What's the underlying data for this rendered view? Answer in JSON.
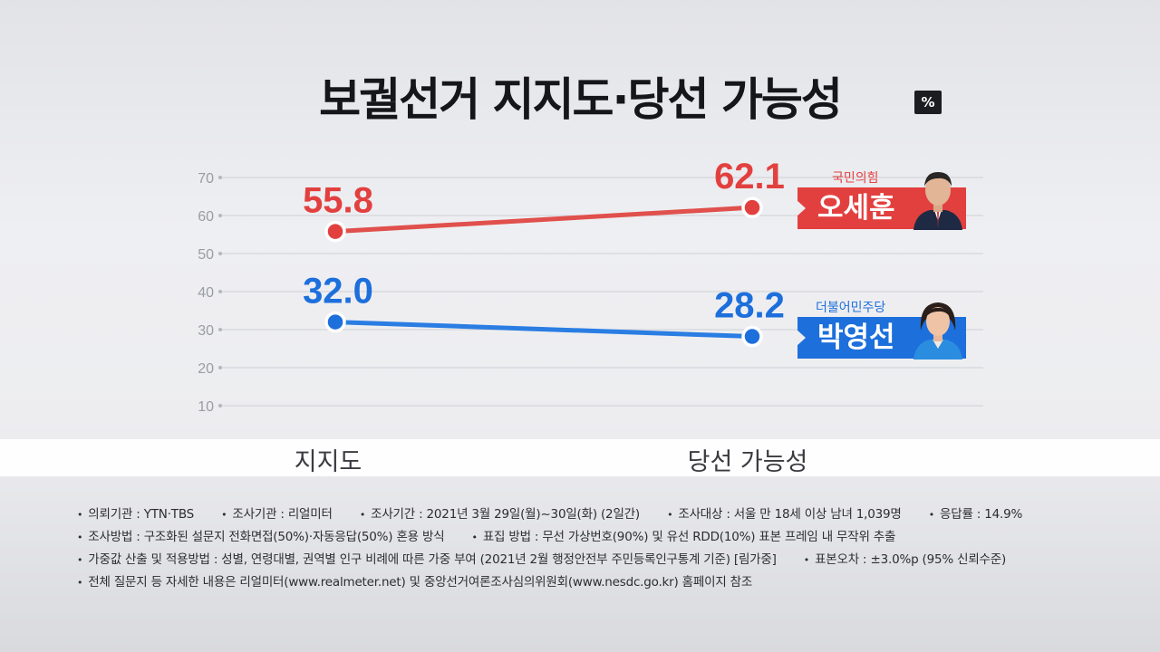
{
  "title": "보궐선거 지지도·당선 가능성",
  "unit_badge": "%",
  "colors": {
    "red": "#e2403f",
    "blue": "#1d6fdc",
    "red_line": "#e0504c",
    "blue_line": "#2a7de2"
  },
  "chart_data": {
    "type": "line",
    "title": "보궐선거 지지도·당선 가능성",
    "unit": "%",
    "categories": [
      "지지도",
      "당선 가능성"
    ],
    "y_ticks": [
      70,
      60,
      50,
      40,
      30,
      20,
      10
    ],
    "ylim": [
      10,
      70
    ],
    "grid": true,
    "series": [
      {
        "name": "오세훈",
        "party": "국민의힘",
        "color": "#e2403f",
        "values": [
          55.8,
          62.1
        ],
        "labels": [
          "55.8",
          "62.1"
        ]
      },
      {
        "name": "박영선",
        "party": "더불어민주당",
        "color": "#1d6fdc",
        "values": [
          32.0,
          28.2
        ],
        "labels": [
          "32.0",
          "28.2"
        ]
      }
    ]
  },
  "candidates": [
    {
      "party": "국민의힘",
      "name": "오세훈",
      "color": "#e2403f",
      "avatar_icon": "candidate-photo-icon"
    },
    {
      "party": "더불어민주당",
      "name": "박영선",
      "color": "#1d6fdc",
      "avatar_icon": "candidate-photo-icon"
    }
  ],
  "notes": {
    "line1": [
      "의뢰기관 : YTN·TBS",
      "조사기관 : 리얼미터",
      "조사기간 : 2021년 3월 29일(월)~30일(화) (2일간)",
      "조사대상 : 서울 만 18세 이상 남녀 1,039명",
      "응답률 : 14.9%"
    ],
    "line2": [
      "조사방법 : 구조화된 설문지 전화면접(50%)·자동응답(50%) 혼용 방식",
      "표집 방법 : 무선 가상번호(90%) 및 유선 RDD(10%) 표본 프레임 내 무작위 추출"
    ],
    "line3": [
      "가중값 산출 및 적용방법 : 성별, 연령대별, 권역별 인구 비례에 따른 가중 부여 (2021년 2월 행정안전부 주민등록인구통계 기준) [림가중]",
      "표본오차 : ±3.0%p (95% 신뢰수준)"
    ],
    "line4": [
      "전체 질문지 등 자세한 내용은 리얼미터(www.realmeter.net) 및 중앙선거여론조사심의위원회(www.nesdc.go.kr) 홈페이지 참조"
    ]
  }
}
